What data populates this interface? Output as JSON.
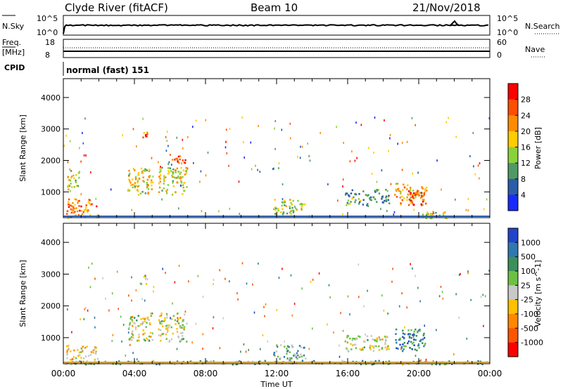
{
  "header": {
    "station": "Clyde River (fitACF)",
    "beam": "Beam 10",
    "date": "21/Nov/2018"
  },
  "top_panels": {
    "nsky_label": "N.Sky",
    "nsky_ticks": [
      "10^5",
      "10^0"
    ],
    "nsearch_label": "N.Search",
    "nsearch_ticks": [
      "10^5",
      "10^0"
    ],
    "freq_label_1": "Freq.",
    "freq_label_2": "[MHz]",
    "freq_ticks": [
      "18",
      "8"
    ],
    "nave_label": "Nave",
    "nave_ticks": [
      "60",
      "0"
    ],
    "cpid_label": "CPID",
    "cpid_value": "normal (fast) 151"
  },
  "chart_data": [
    {
      "type": "heatmap",
      "name": "power",
      "ylabel": "Slant Range [km]",
      "ylim": [
        180,
        4600
      ],
      "yticks": [
        "1000",
        "2000",
        "3000",
        "4000"
      ],
      "xlim": [
        "00:00",
        "24:00"
      ],
      "colorbar_label": "Power [dB]",
      "colorbar_ticks": [
        "28",
        "24",
        "20",
        "16",
        "12",
        "8",
        "4"
      ],
      "colorbar_colors": [
        "#ff0000",
        "#ff4e00",
        "#ff8c00",
        "#ffcc00",
        "#8ad23a",
        "#4f9a64",
        "#2b5caa",
        "#1a2aff"
      ],
      "patches": [
        {
          "t0": 0.1,
          "t1": 1.9,
          "r0": 200,
          "r1": 800,
          "level": 0.75
        },
        {
          "t0": 0.2,
          "t1": 0.9,
          "r0": 1100,
          "r1": 1700,
          "level": 0.45
        },
        {
          "t0": 3.6,
          "t1": 5.0,
          "r0": 900,
          "r1": 1800,
          "level": 0.55
        },
        {
          "t0": 4.3,
          "t1": 4.8,
          "r0": 2700,
          "r1": 3000,
          "level": 0.8
        },
        {
          "t0": 5.3,
          "t1": 6.9,
          "r0": 900,
          "r1": 1800,
          "level": 0.5
        },
        {
          "t0": 6.0,
          "t1": 6.9,
          "r0": 1900,
          "r1": 2200,
          "level": 0.85
        },
        {
          "t0": 11.8,
          "t1": 13.6,
          "r0": 300,
          "r1": 800,
          "level": 0.45
        },
        {
          "t0": 15.8,
          "t1": 18.3,
          "r0": 600,
          "r1": 1100,
          "level": 0.3
        },
        {
          "t0": 18.6,
          "t1": 20.4,
          "r0": 600,
          "r1": 1300,
          "level": 0.7
        },
        {
          "t0": 19.4,
          "t1": 20.2,
          "r0": 600,
          "r1": 1100,
          "level": 0.95
        },
        {
          "t0": 20.0,
          "t1": 21.6,
          "r0": 180,
          "r1": 400,
          "level": 0.5
        }
      ]
    },
    {
      "type": "heatmap",
      "name": "velocity",
      "ylabel": "Slant Range [km]",
      "ylim": [
        180,
        4600
      ],
      "yticks": [
        "1000",
        "2000",
        "3000",
        "4000"
      ],
      "xlim": [
        "00:00",
        "24:00"
      ],
      "xticks": [
        "00:00",
        "04:00",
        "08:00",
        "12:00",
        "16:00",
        "20:00",
        "00:00"
      ],
      "xlabel": "Time UT",
      "colorbar_label": "Velocity [m s^-1]",
      "colorbar_ticks": [
        "1000",
        "500",
        "100",
        "25",
        "-25",
        "-100",
        "-500",
        "-1000"
      ],
      "colorbar_colors": [
        "#2244cc",
        "#2f78b0",
        "#3c8f5a",
        "#6cc043",
        "#c8c8c8",
        "#ffc000",
        "#ff8800",
        "#ff5500",
        "#ff0000"
      ],
      "patches": [
        {
          "t0": 0.1,
          "t1": 1.9,
          "r0": 200,
          "r1": 800,
          "level": 0.4
        },
        {
          "t0": 3.6,
          "t1": 5.0,
          "r0": 900,
          "r1": 1800,
          "level": 0.5
        },
        {
          "t0": 4.3,
          "t1": 4.8,
          "r0": 2700,
          "r1": 3000,
          "level": 0.6
        },
        {
          "t0": 5.3,
          "t1": 6.9,
          "r0": 900,
          "r1": 1800,
          "level": 0.5
        },
        {
          "t0": 11.8,
          "t1": 13.6,
          "r0": 300,
          "r1": 800,
          "level": 0.7
        },
        {
          "t0": 15.8,
          "t1": 18.3,
          "r0": 600,
          "r1": 1100,
          "level": 0.5
        },
        {
          "t0": 18.6,
          "t1": 20.4,
          "r0": 600,
          "r1": 1300,
          "level": 0.8
        },
        {
          "t0": 0.0,
          "t1": 24.0,
          "r0": 180,
          "r1": 300,
          "level": 0.65
        }
      ]
    }
  ]
}
